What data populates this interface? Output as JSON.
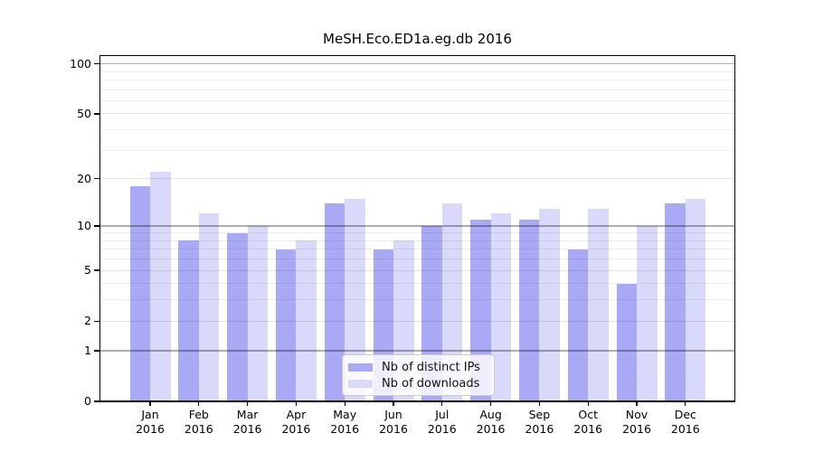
{
  "title": "MeSH.Eco.ED1a.eg.db 2016",
  "chart_data": {
    "type": "bar",
    "title": "MeSH.Eco.ED1a.eg.db 2016",
    "categories": [
      "Jan",
      "Feb",
      "Mar",
      "Apr",
      "May",
      "Jun",
      "Jul",
      "Aug",
      "Sep",
      "Oct",
      "Nov",
      "Dec"
    ],
    "category_year": "2016",
    "series": [
      {
        "name": "Nb of distinct IPs",
        "color": "#a9a9f6",
        "values": [
          18,
          8,
          9,
          7,
          14,
          7,
          10,
          11,
          11,
          7,
          4,
          14
        ]
      },
      {
        "name": "Nb of downloads",
        "color": "#d9d9fa",
        "values": [
          22,
          12,
          10,
          8,
          15,
          8,
          14,
          12,
          13,
          13,
          10,
          15
        ]
      }
    ],
    "xlabel": "",
    "ylabel": "",
    "yscale": "log1p",
    "ylim": [
      0,
      112
    ],
    "y_ticks": [
      0,
      1,
      2,
      5,
      10,
      20,
      50,
      100
    ],
    "y_major_gridlines": [
      1,
      10,
      100
    ],
    "y_mid_gridlines": [
      2,
      5,
      20,
      50
    ],
    "y_minor_gridlines": [
      3,
      4,
      6,
      7,
      8,
      9,
      30,
      40,
      60,
      70,
      80,
      90
    ],
    "grid": true,
    "legend_position": "lower center"
  }
}
